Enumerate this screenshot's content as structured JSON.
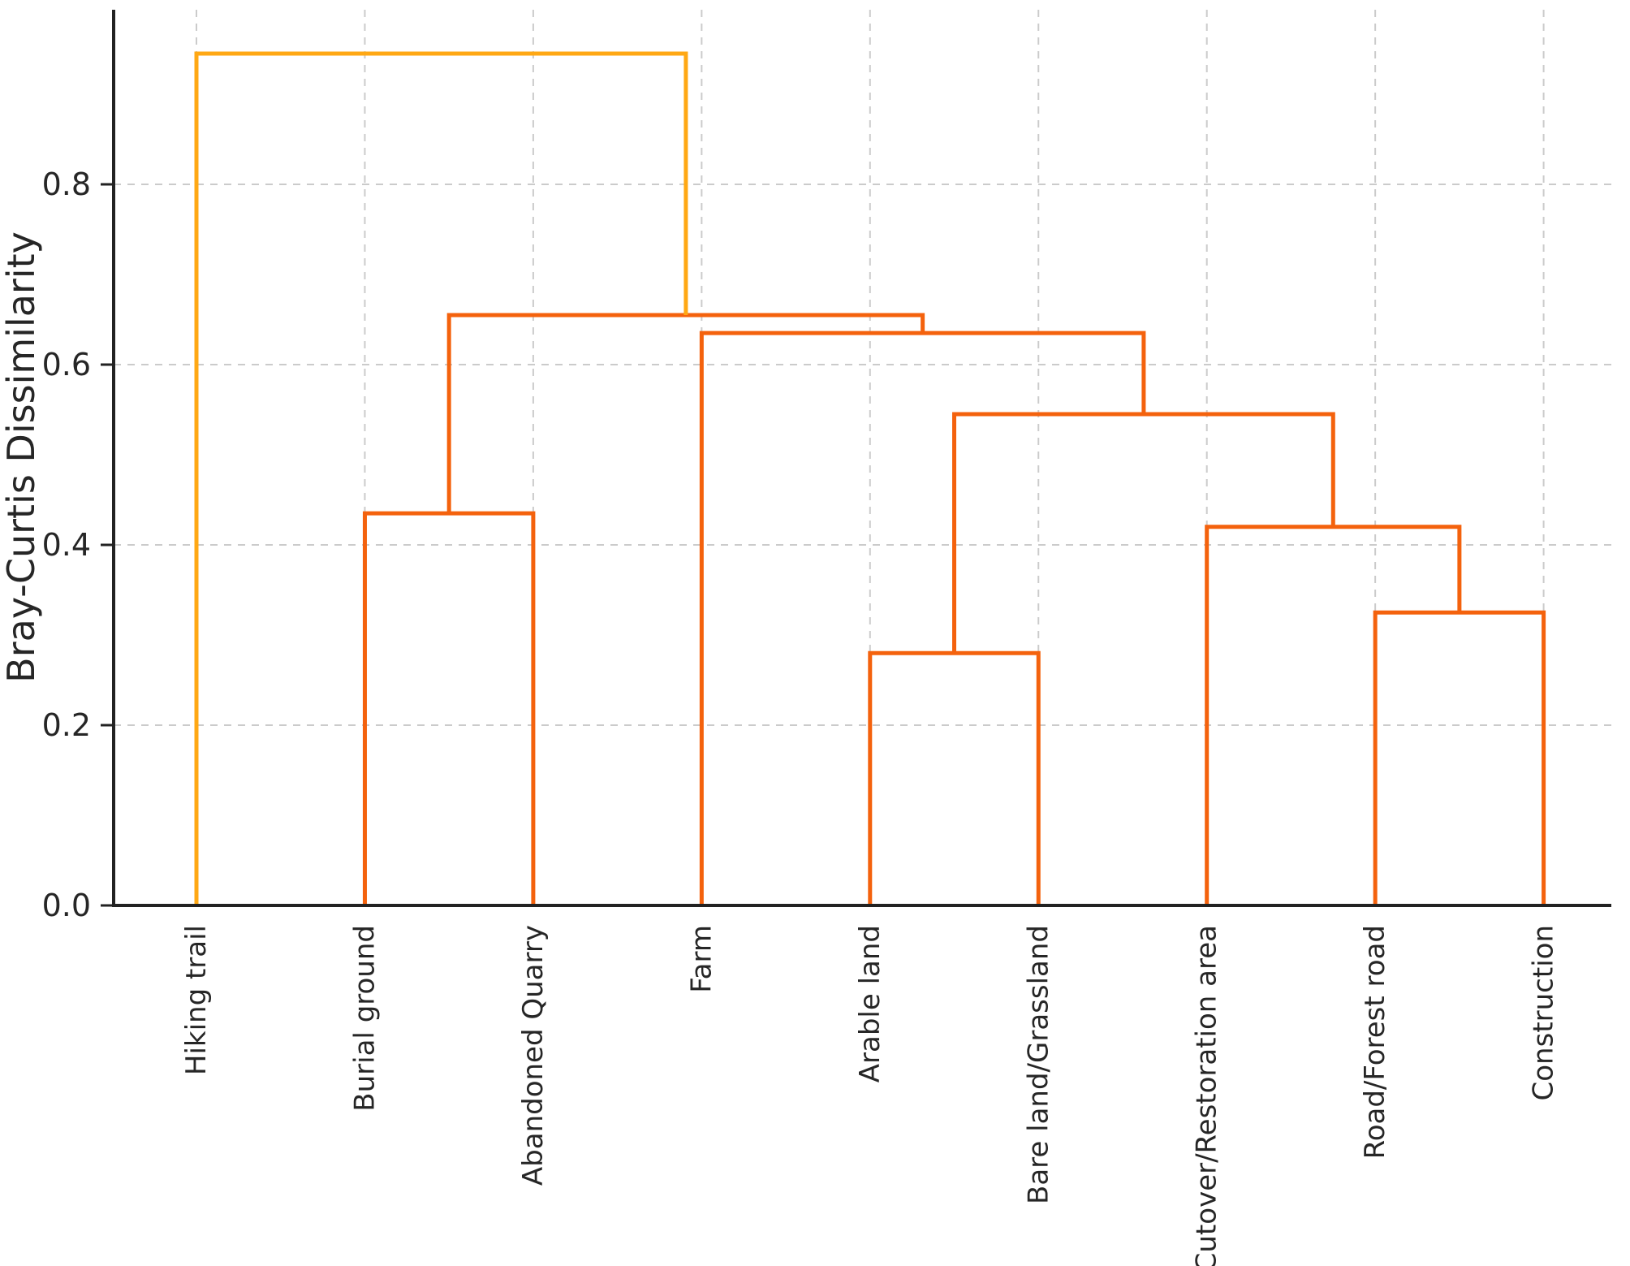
{
  "chart_data": {
    "type": "dendrogram",
    "title": "",
    "ylabel": "Bray-Curtis Dissimilarity",
    "xlabel": "",
    "ylim": [
      0.0,
      0.995
    ],
    "grid": "dashed gridlines on both axes",
    "legend": "none",
    "leaves": [
      "Hiking trail",
      "Burial ground",
      "Abandoned Quarry",
      "Farm",
      "Arable land",
      "Bare land/Grassland",
      "Cutover/Restoration area",
      "Road/Forest road",
      "Construction"
    ],
    "yticks": [
      {
        "label": "0.0",
        "value": 0.0
      },
      {
        "label": "0.2",
        "value": 0.2
      },
      {
        "label": "0.4",
        "value": 0.4
      },
      {
        "label": "0.6",
        "value": 0.6
      },
      {
        "label": "0.8",
        "value": 0.8
      }
    ],
    "links": [
      {
        "left": "Arable land",
        "right": "Bare land/Grassland",
        "height": 0.28,
        "color_key": "cluster"
      },
      {
        "left": "Road/Forest road",
        "right": "Construction",
        "height": 0.325,
        "color_key": "cluster"
      },
      {
        "left": "Cutover/Restoration area",
        "right": "@1",
        "height": 0.42,
        "color_key": "cluster"
      },
      {
        "left": "Burial ground",
        "right": "Abandoned Quarry",
        "height": 0.435,
        "color_key": "cluster"
      },
      {
        "left": "@0",
        "right": "@2",
        "height": 0.545,
        "color_key": "cluster"
      },
      {
        "left": "Farm",
        "right": "@4",
        "height": 0.635,
        "color_key": "cluster"
      },
      {
        "left": "@3",
        "right": "@5",
        "height": 0.655,
        "color_key": "cluster"
      },
      {
        "left": "Hiking trail",
        "right": "@6",
        "height": 0.945,
        "color_key": "root"
      }
    ],
    "colors": {
      "cluster": "#F4620D",
      "root": "#FFA814",
      "axis": "#222222",
      "grid": "#CBCBCB",
      "text": "#262626"
    }
  }
}
